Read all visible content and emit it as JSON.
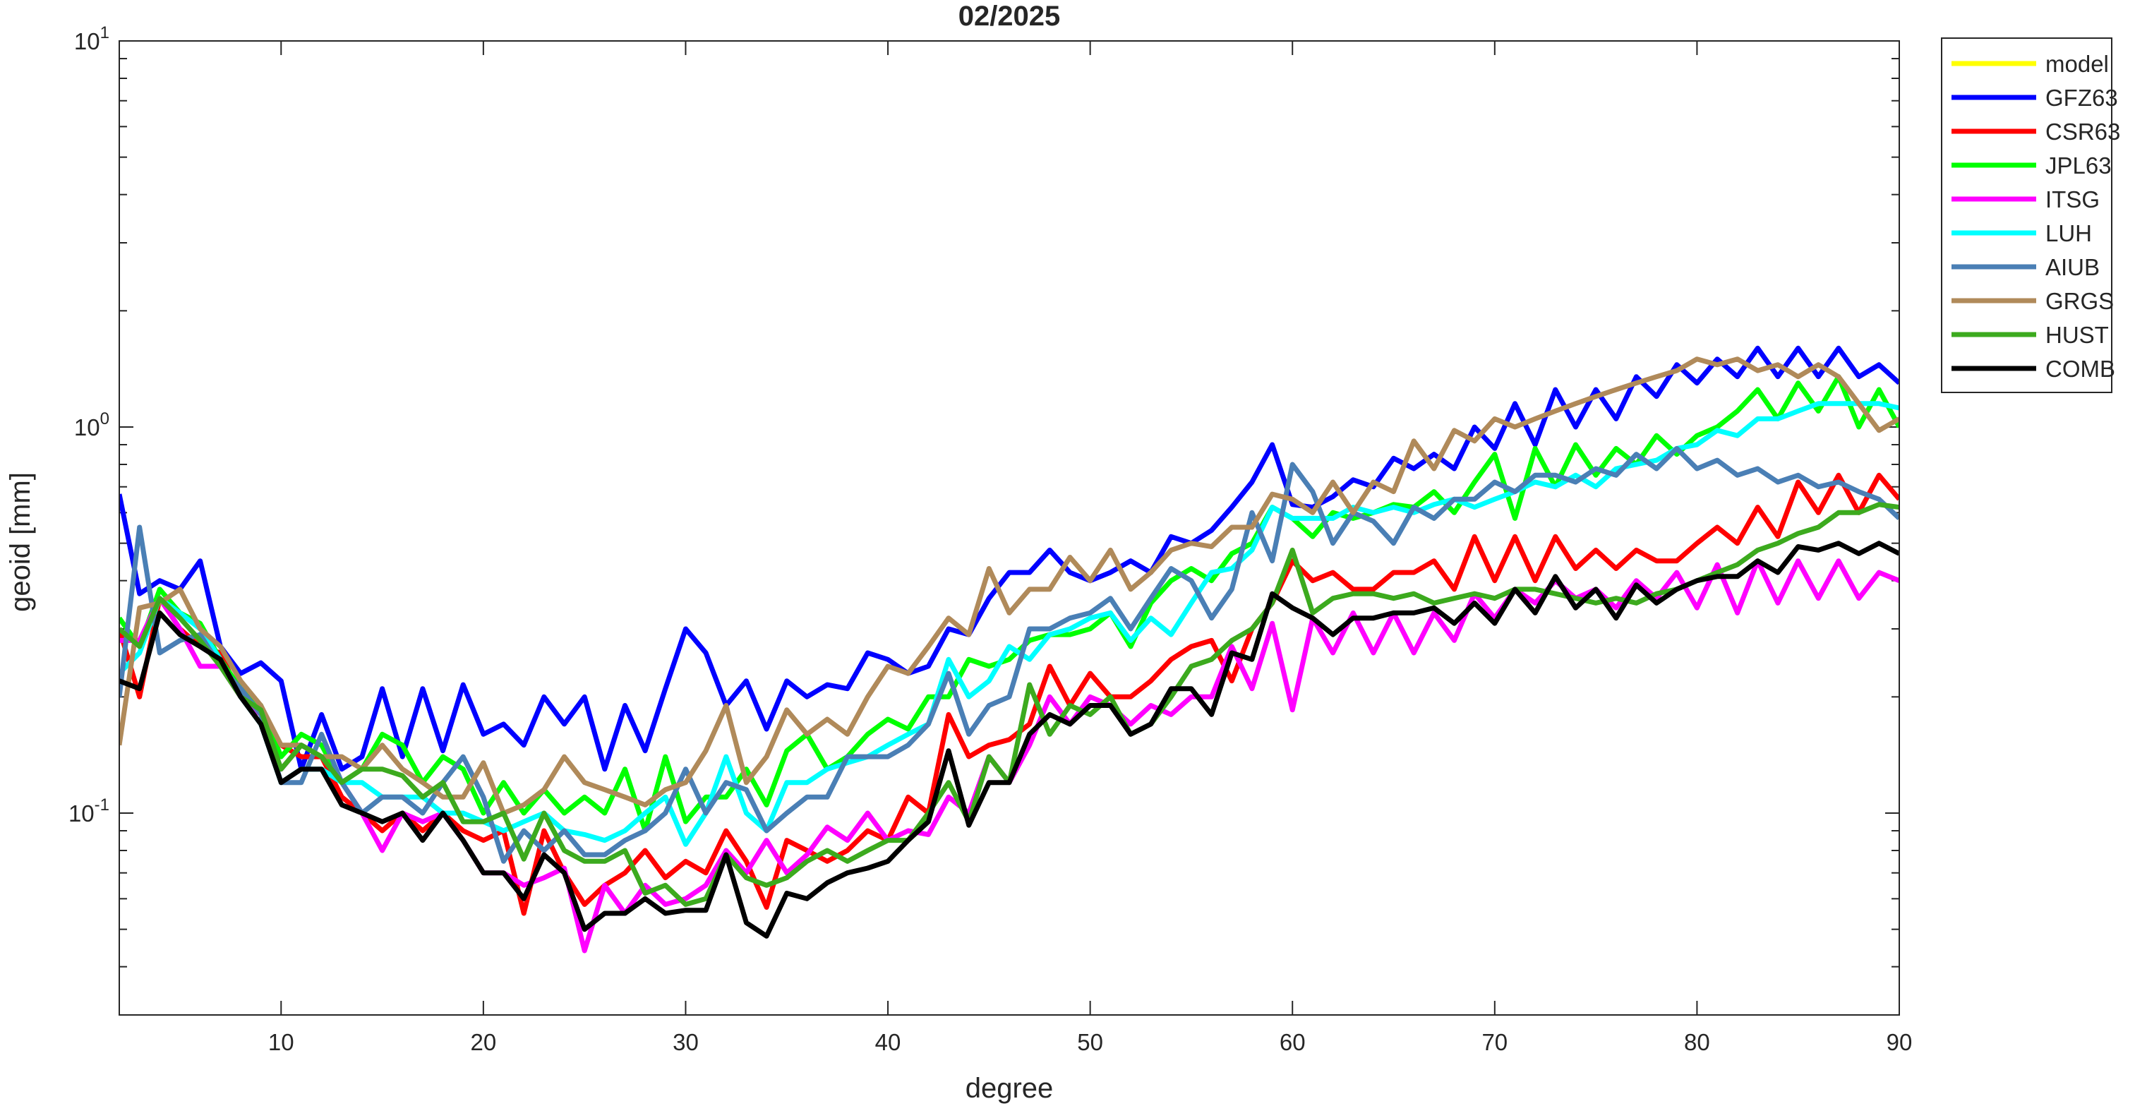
{
  "chart_data": {
    "type": "line",
    "title": "02/2025",
    "xlabel": "degree",
    "ylabel": "geoid [mm]",
    "log_y": true,
    "legend": "outside-northeast",
    "xlim": [
      2,
      90
    ],
    "xticks": [
      10,
      20,
      30,
      40,
      50,
      60,
      70,
      80,
      90
    ],
    "ylim": [
      0.03,
      10
    ],
    "yticks": [
      {
        "value": 0.1,
        "label": "10",
        "exponent": "-1"
      },
      {
        "value": 1,
        "label": "10",
        "exponent": "0"
      },
      {
        "value": 10,
        "label": "10",
        "exponent": "1"
      }
    ],
    "yminorticks": [
      0.04,
      0.05,
      0.06,
      0.07,
      0.08,
      0.09,
      0.2,
      0.3,
      0.4,
      0.5,
      0.6,
      0.7,
      0.8,
      0.9,
      2,
      3,
      4,
      5,
      6,
      7,
      8,
      9
    ],
    "x": [
      2,
      3,
      4,
      5,
      6,
      7,
      8,
      9,
      10,
      11,
      12,
      13,
      14,
      15,
      16,
      17,
      18,
      19,
      20,
      21,
      22,
      23,
      24,
      25,
      26,
      27,
      28,
      29,
      30,
      31,
      32,
      33,
      34,
      35,
      36,
      37,
      38,
      39,
      40,
      41,
      42,
      43,
      44,
      45,
      46,
      47,
      48,
      49,
      50,
      51,
      52,
      53,
      54,
      55,
      56,
      57,
      58,
      59,
      60,
      61,
      62,
      63,
      64,
      65,
      66,
      67,
      68,
      69,
      70,
      71,
      72,
      73,
      74,
      75,
      76,
      77,
      78,
      79,
      80,
      81,
      82,
      83,
      84,
      85,
      86,
      87,
      88,
      89,
      90
    ],
    "series": [
      {
        "name": "model",
        "color": "#ffff00",
        "values": [
          null,
          null,
          null,
          null,
          null,
          null,
          null,
          null,
          null,
          null,
          null,
          null,
          null,
          null,
          null,
          null,
          null,
          null,
          null,
          null,
          null,
          null,
          null,
          null,
          null,
          null,
          null,
          null,
          null,
          null,
          null,
          null,
          null,
          null,
          null,
          null,
          null,
          null,
          null,
          null,
          null,
          null,
          null,
          null,
          null,
          null,
          null,
          null,
          null,
          null,
          null,
          null,
          null,
          null,
          null,
          null,
          null,
          null,
          null,
          null,
          null,
          null,
          null,
          null,
          null,
          null,
          null,
          null,
          null,
          null,
          null,
          null,
          null,
          null,
          null,
          null,
          null,
          null,
          null,
          null,
          null,
          null,
          null,
          null,
          null,
          null,
          null,
          null,
          null
        ]
      },
      {
        "name": "GFZ63",
        "color": "#0000ff",
        "values": [
          0.67,
          0.37,
          0.4,
          0.38,
          0.45,
          0.27,
          0.23,
          0.245,
          0.22,
          0.13,
          0.18,
          0.13,
          0.14,
          0.21,
          0.14,
          0.21,
          0.145,
          0.215,
          0.16,
          0.17,
          0.15,
          0.2,
          0.17,
          0.2,
          0.13,
          0.19,
          0.145,
          0.21,
          0.3,
          0.26,
          0.19,
          0.22,
          0.165,
          0.22,
          0.2,
          0.215,
          0.21,
          0.26,
          0.25,
          0.23,
          0.24,
          0.3,
          0.29,
          0.36,
          0.42,
          0.42,
          0.48,
          0.42,
          0.4,
          0.42,
          0.45,
          0.42,
          0.52,
          0.5,
          0.54,
          0.62,
          0.72,
          0.9,
          0.63,
          0.62,
          0.66,
          0.73,
          0.7,
          0.83,
          0.78,
          0.85,
          0.78,
          1.0,
          0.88,
          1.15,
          0.9,
          1.25,
          1.0,
          1.25,
          1.05,
          1.35,
          1.2,
          1.45,
          1.3,
          1.5,
          1.35,
          1.6,
          1.35,
          1.6,
          1.35,
          1.6,
          1.35,
          1.45,
          1.3
        ]
      },
      {
        "name": "CSR63",
        "color": "#ff0000",
        "values": [
          0.3,
          0.2,
          0.36,
          0.3,
          0.27,
          0.26,
          0.2,
          0.18,
          0.15,
          0.14,
          0.14,
          0.11,
          0.1,
          0.09,
          0.1,
          0.09,
          0.1,
          0.09,
          0.085,
          0.09,
          0.055,
          0.09,
          0.07,
          0.058,
          0.065,
          0.07,
          0.08,
          0.068,
          0.075,
          0.07,
          0.09,
          0.075,
          0.057,
          0.085,
          0.08,
          0.075,
          0.08,
          0.09,
          0.085,
          0.11,
          0.1,
          0.18,
          0.14,
          0.15,
          0.155,
          0.17,
          0.24,
          0.19,
          0.23,
          0.2,
          0.2,
          0.22,
          0.25,
          0.27,
          0.28,
          0.22,
          0.3,
          0.35,
          0.45,
          0.4,
          0.42,
          0.38,
          0.38,
          0.42,
          0.42,
          0.45,
          0.38,
          0.52,
          0.4,
          0.52,
          0.4,
          0.52,
          0.43,
          0.48,
          0.43,
          0.48,
          0.45,
          0.45,
          0.5,
          0.55,
          0.5,
          0.62,
          0.52,
          0.72,
          0.6,
          0.75,
          0.6,
          0.75,
          0.65
        ]
      },
      {
        "name": "JPL63",
        "color": "#00ff00",
        "values": [
          0.32,
          0.27,
          0.38,
          0.33,
          0.31,
          0.25,
          0.21,
          0.19,
          0.14,
          0.16,
          0.15,
          0.12,
          0.13,
          0.16,
          0.15,
          0.12,
          0.14,
          0.13,
          0.1,
          0.12,
          0.1,
          0.115,
          0.1,
          0.11,
          0.1,
          0.13,
          0.09,
          0.14,
          0.095,
          0.11,
          0.11,
          0.13,
          0.105,
          0.145,
          0.16,
          0.13,
          0.14,
          0.16,
          0.175,
          0.165,
          0.2,
          0.2,
          0.25,
          0.24,
          0.25,
          0.28,
          0.29,
          0.29,
          0.3,
          0.33,
          0.27,
          0.35,
          0.4,
          0.43,
          0.4,
          0.47,
          0.5,
          0.62,
          0.58,
          0.52,
          0.6,
          0.58,
          0.6,
          0.63,
          0.62,
          0.68,
          0.6,
          0.72,
          0.85,
          0.58,
          0.88,
          0.7,
          0.9,
          0.75,
          0.88,
          0.8,
          0.95,
          0.85,
          0.95,
          1.0,
          1.1,
          1.25,
          1.05,
          1.3,
          1.1,
          1.35,
          1.0,
          1.25,
          1.0
        ]
      },
      {
        "name": "ITSG",
        "color": "#ff00ff",
        "values": [
          0.28,
          0.28,
          0.36,
          0.3,
          0.24,
          0.24,
          0.2,
          0.18,
          0.13,
          0.15,
          0.14,
          0.12,
          0.1,
          0.08,
          0.1,
          0.095,
          0.1,
          0.085,
          0.07,
          0.07,
          0.065,
          0.068,
          0.072,
          0.044,
          0.065,
          0.055,
          0.065,
          0.058,
          0.06,
          0.065,
          0.08,
          0.07,
          0.085,
          0.07,
          0.078,
          0.092,
          0.085,
          0.1,
          0.085,
          0.09,
          0.088,
          0.11,
          0.1,
          0.14,
          0.12,
          0.15,
          0.2,
          0.17,
          0.2,
          0.19,
          0.17,
          0.19,
          0.18,
          0.2,
          0.2,
          0.27,
          0.21,
          0.31,
          0.185,
          0.32,
          0.26,
          0.33,
          0.26,
          0.33,
          0.26,
          0.33,
          0.28,
          0.37,
          0.32,
          0.38,
          0.35,
          0.4,
          0.36,
          0.38,
          0.34,
          0.4,
          0.36,
          0.42,
          0.34,
          0.44,
          0.33,
          0.45,
          0.35,
          0.45,
          0.36,
          0.45,
          0.36,
          0.42,
          0.4
        ]
      },
      {
        "name": "LUH",
        "color": "#00ffff",
        "values": [
          0.23,
          0.26,
          0.36,
          0.33,
          0.3,
          0.25,
          0.2,
          0.17,
          0.12,
          0.13,
          0.13,
          0.12,
          0.12,
          0.11,
          0.11,
          0.11,
          0.1,
          0.1,
          0.095,
          0.09,
          0.095,
          0.1,
          0.09,
          0.088,
          0.085,
          0.09,
          0.1,
          0.11,
          0.083,
          0.1,
          0.14,
          0.1,
          0.09,
          0.12,
          0.12,
          0.13,
          0.135,
          0.14,
          0.15,
          0.16,
          0.17,
          0.25,
          0.2,
          0.22,
          0.27,
          0.25,
          0.29,
          0.3,
          0.32,
          0.33,
          0.28,
          0.32,
          0.29,
          0.35,
          0.42,
          0.43,
          0.48,
          0.62,
          0.58,
          0.58,
          0.58,
          0.62,
          0.6,
          0.62,
          0.6,
          0.63,
          0.65,
          0.62,
          0.65,
          0.68,
          0.72,
          0.7,
          0.75,
          0.7,
          0.78,
          0.8,
          0.82,
          0.88,
          0.9,
          0.98,
          0.95,
          1.05,
          1.05,
          1.1,
          1.15,
          1.15,
          1.15,
          1.15,
          1.12
        ]
      },
      {
        "name": "AIUB",
        "color": "#4a7fb5",
        "values": [
          0.2,
          0.55,
          0.26,
          0.28,
          0.29,
          0.24,
          0.21,
          0.18,
          0.12,
          0.12,
          0.16,
          0.12,
          0.1,
          0.11,
          0.11,
          0.1,
          0.12,
          0.14,
          0.11,
          0.075,
          0.09,
          0.08,
          0.09,
          0.078,
          0.078,
          0.085,
          0.09,
          0.1,
          0.13,
          0.1,
          0.12,
          0.115,
          0.09,
          0.1,
          0.11,
          0.11,
          0.14,
          0.14,
          0.14,
          0.15,
          0.17,
          0.23,
          0.16,
          0.19,
          0.2,
          0.3,
          0.3,
          0.32,
          0.33,
          0.36,
          0.3,
          0.36,
          0.43,
          0.4,
          0.32,
          0.38,
          0.6,
          0.45,
          0.8,
          0.68,
          0.5,
          0.6,
          0.57,
          0.5,
          0.62,
          0.58,
          0.65,
          0.65,
          0.72,
          0.68,
          0.75,
          0.75,
          0.72,
          0.78,
          0.75,
          0.85,
          0.78,
          0.88,
          0.78,
          0.82,
          0.75,
          0.78,
          0.72,
          0.75,
          0.7,
          0.72,
          0.68,
          0.65,
          0.58
        ]
      },
      {
        "name": "GRGS",
        "color": "#b08a5a",
        "values": [
          0.15,
          0.34,
          0.35,
          0.38,
          0.3,
          0.27,
          0.22,
          0.19,
          0.15,
          0.15,
          0.14,
          0.14,
          0.13,
          0.15,
          0.13,
          0.12,
          0.11,
          0.11,
          0.135,
          0.1,
          0.105,
          0.115,
          0.14,
          0.12,
          0.115,
          0.11,
          0.105,
          0.115,
          0.12,
          0.145,
          0.19,
          0.12,
          0.14,
          0.185,
          0.16,
          0.175,
          0.16,
          0.2,
          0.24,
          0.23,
          0.27,
          0.32,
          0.29,
          0.43,
          0.33,
          0.38,
          0.38,
          0.46,
          0.4,
          0.48,
          0.38,
          0.42,
          0.48,
          0.5,
          0.49,
          0.55,
          0.55,
          0.67,
          0.65,
          0.6,
          0.72,
          0.6,
          0.72,
          0.68,
          0.92,
          0.78,
          0.98,
          0.92,
          1.05,
          1.0,
          1.05,
          1.1,
          1.15,
          1.2,
          1.25,
          1.3,
          1.35,
          1.4,
          1.5,
          1.45,
          1.5,
          1.4,
          1.45,
          1.35,
          1.45,
          1.35,
          1.15,
          0.98,
          1.05
        ]
      },
      {
        "name": "HUST",
        "color": "#3caa1e",
        "values": [
          0.3,
          0.27,
          0.36,
          0.32,
          0.28,
          0.24,
          0.2,
          0.185,
          0.13,
          0.15,
          0.14,
          0.12,
          0.13,
          0.13,
          0.125,
          0.11,
          0.12,
          0.095,
          0.095,
          0.1,
          0.076,
          0.1,
          0.08,
          0.075,
          0.075,
          0.08,
          0.062,
          0.065,
          0.058,
          0.06,
          0.078,
          0.068,
          0.065,
          0.068,
          0.075,
          0.08,
          0.075,
          0.08,
          0.085,
          0.085,
          0.1,
          0.12,
          0.095,
          0.14,
          0.12,
          0.215,
          0.16,
          0.19,
          0.18,
          0.2,
          0.16,
          0.17,
          0.2,
          0.24,
          0.25,
          0.28,
          0.3,
          0.35,
          0.48,
          0.33,
          0.36,
          0.37,
          0.37,
          0.36,
          0.37,
          0.35,
          0.36,
          0.37,
          0.36,
          0.38,
          0.38,
          0.37,
          0.36,
          0.35,
          0.36,
          0.35,
          0.37,
          0.38,
          0.4,
          0.42,
          0.44,
          0.48,
          0.5,
          0.53,
          0.55,
          0.6,
          0.6,
          0.63,
          0.62
        ]
      },
      {
        "name": "COMB",
        "color": "#000000",
        "values": [
          0.22,
          0.21,
          0.33,
          0.29,
          0.27,
          0.25,
          0.2,
          0.17,
          0.12,
          0.13,
          0.13,
          0.105,
          0.1,
          0.095,
          0.1,
          0.085,
          0.1,
          0.085,
          0.07,
          0.07,
          0.06,
          0.078,
          0.07,
          0.05,
          0.055,
          0.055,
          0.06,
          0.055,
          0.056,
          0.056,
          0.078,
          0.052,
          0.048,
          0.062,
          0.06,
          0.066,
          0.07,
          0.072,
          0.075,
          0.085,
          0.095,
          0.145,
          0.093,
          0.12,
          0.12,
          0.16,
          0.18,
          0.17,
          0.19,
          0.19,
          0.16,
          0.17,
          0.21,
          0.21,
          0.18,
          0.26,
          0.25,
          0.37,
          0.34,
          0.32,
          0.29,
          0.32,
          0.32,
          0.33,
          0.33,
          0.34,
          0.31,
          0.35,
          0.31,
          0.38,
          0.33,
          0.41,
          0.34,
          0.38,
          0.32,
          0.39,
          0.35,
          0.38,
          0.4,
          0.41,
          0.41,
          0.45,
          0.42,
          0.49,
          0.48,
          0.5,
          0.47,
          0.5,
          0.47
        ]
      }
    ]
  }
}
